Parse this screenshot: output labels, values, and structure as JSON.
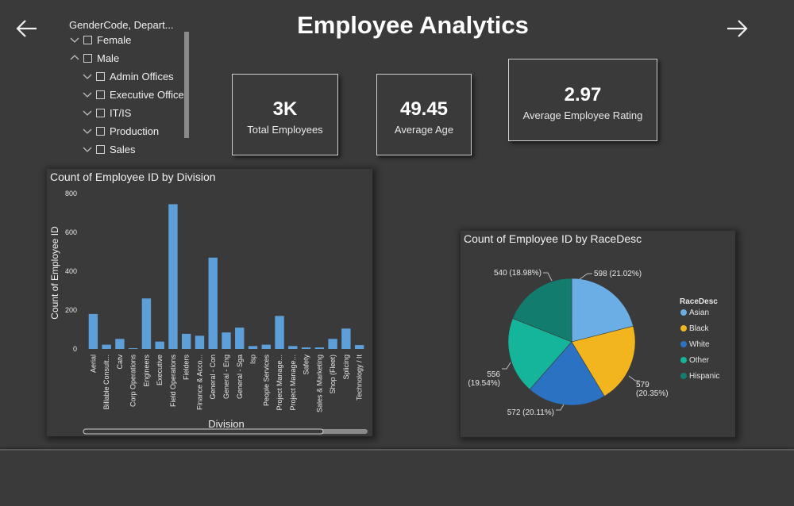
{
  "header": {
    "title": "Employee Analytics"
  },
  "slicer": {
    "title": "GenderCode, Depart...",
    "items": [
      {
        "label": "Female",
        "level": 0,
        "expanded": false
      },
      {
        "label": "Male",
        "level": 0,
        "expanded": true
      },
      {
        "label": "Admin Offices",
        "level": 1,
        "expanded": false
      },
      {
        "label": "Executive Office",
        "level": 1,
        "expanded": false
      },
      {
        "label": "IT/IS",
        "level": 1,
        "expanded": false
      },
      {
        "label": "Production",
        "level": 1,
        "expanded": false
      },
      {
        "label": "Sales",
        "level": 1,
        "expanded": false
      }
    ]
  },
  "kpis": {
    "total_employees": {
      "value": "3K",
      "label": "Total Employees"
    },
    "average_age": {
      "value": "49.45",
      "label": "Average Age"
    },
    "average_rating": {
      "value": "2.97",
      "label": "Average Employee Rating"
    }
  },
  "colors": {
    "bar": "#5d9fd8",
    "asian": "#6aaee5",
    "black": "#f2b51d",
    "white": "#2b73c2",
    "other": "#14b59a",
    "hispanic": "#127c6e"
  },
  "chart_data": [
    {
      "type": "bar",
      "title": "Count of Employee ID by Division",
      "xlabel": "Division",
      "ylabel": "Count of Employee ID",
      "ylim": [
        0,
        800
      ],
      "yticks": [
        "0",
        "200",
        "400",
        "600",
        "800"
      ],
      "categories": [
        "Aerial",
        "Billable Consult...",
        "Catv",
        "Corp Operations",
        "Engineers",
        "Executive",
        "Field Operations",
        "Fielders",
        "Finance & Acco...",
        "General - Con",
        "General - Eng",
        "General - Sga",
        "Isp",
        "People Services",
        "Project Manage...",
        "Project Manage...",
        "Safety",
        "Sales & Marketing",
        "Shop (Fleet)",
        "Splicing",
        "Technology / It"
      ],
      "values": [
        180,
        22,
        52,
        4,
        260,
        38,
        745,
        78,
        68,
        470,
        85,
        110,
        15,
        22,
        170,
        15,
        8,
        8,
        52,
        105,
        20
      ],
      "grid": false
    },
    {
      "type": "pie",
      "title": "Count of Employee ID by RaceDesc",
      "legend_title": "RaceDesc",
      "legend_position": "right",
      "slices": [
        {
          "name": "Asian",
          "value": 598,
          "label": "598 (21.02%)"
        },
        {
          "name": "Black",
          "value": 579,
          "label_line1": "579",
          "label_line2": "(20.35%)"
        },
        {
          "name": "White",
          "value": 572,
          "label": "572 (20.11%)"
        },
        {
          "name": "Other",
          "value": 556,
          "label_line1": "556",
          "label_line2": "(19.54%)"
        },
        {
          "name": "Hispanic",
          "value": 540,
          "label": "540 (18.98%)"
        }
      ]
    }
  ]
}
